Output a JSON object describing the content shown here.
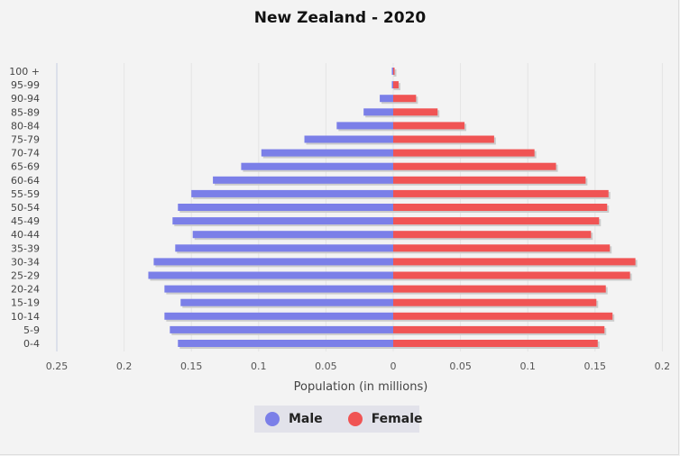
{
  "chart_data": {
    "type": "bar",
    "title": "New Zealand - 2020",
    "xlabel": "Population (in millions)",
    "ylabel": "",
    "xlim": [
      -0.25,
      0.2
    ],
    "x_ticks": [
      "0.25",
      "0.2",
      "0.15",
      "0.1",
      "0.05",
      "0",
      "0.05",
      "0.1",
      "0.15",
      "0.2"
    ],
    "categories": [
      "100 +",
      "95-99",
      "90-94",
      "85-89",
      "80-84",
      "75-79",
      "70-74",
      "65-69",
      "60-64",
      "55-59",
      "50-54",
      "45-49",
      "40-44",
      "35-39",
      "30-34",
      "25-29",
      "20-24",
      "15-19",
      "10-14",
      "5-9",
      "0-4"
    ],
    "series": [
      {
        "name": "Male",
        "color": "#7b7fe8",
        "values": [
          0.001,
          0.001,
          0.01,
          0.022,
          0.042,
          0.066,
          0.098,
          0.113,
          0.134,
          0.15,
          0.16,
          0.164,
          0.149,
          0.162,
          0.178,
          0.182,
          0.17,
          0.158,
          0.17,
          0.166,
          0.16
        ]
      },
      {
        "name": "Female",
        "color": "#f05454",
        "values": [
          0.001,
          0.004,
          0.017,
          0.033,
          0.053,
          0.075,
          0.105,
          0.121,
          0.143,
          0.16,
          0.159,
          0.153,
          0.147,
          0.161,
          0.18,
          0.176,
          0.158,
          0.151,
          0.163,
          0.157,
          0.152
        ]
      }
    ],
    "legend": "bottom"
  }
}
